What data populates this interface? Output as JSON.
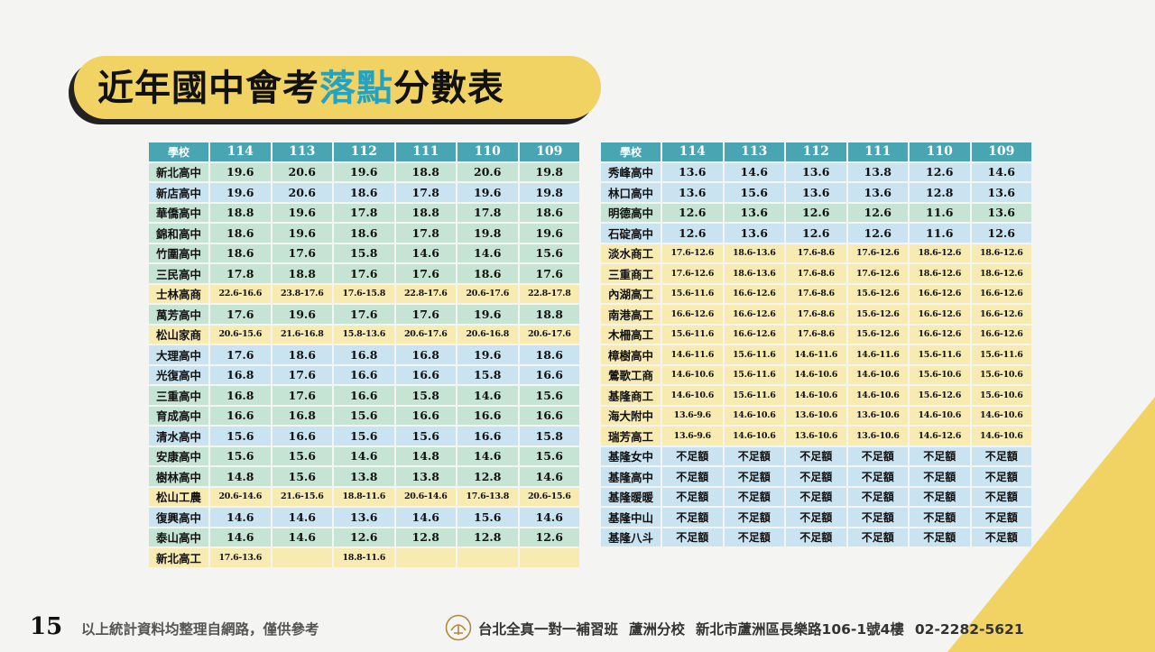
{
  "title": {
    "prefix": "近年國中會考",
    "highlight": "落點",
    "suffix": "分數表"
  },
  "colors": {
    "accent_yellow": "#f1d364",
    "title_highlight": "#26a2c1",
    "header_teal": "#4aa5b3",
    "row_green": "#c6e4d4",
    "row_blue": "#c9e3f1",
    "row_yellow": "#f7ebb2"
  },
  "table_left": {
    "headers": [
      "學校",
      "114",
      "113",
      "112",
      "111",
      "110",
      "109"
    ],
    "rows": [
      {
        "color": "green",
        "cells": [
          "新北高中",
          "19.6",
          "20.6",
          "19.6",
          "18.8",
          "20.6",
          "19.8"
        ]
      },
      {
        "color": "blue",
        "cells": [
          "新店高中",
          "19.6",
          "20.6",
          "18.6",
          "17.8",
          "19.6",
          "19.8"
        ]
      },
      {
        "color": "green",
        "cells": [
          "華僑高中",
          "18.8",
          "19.6",
          "17.8",
          "18.8",
          "17.8",
          "18.6"
        ]
      },
      {
        "color": "green",
        "cells": [
          "錦和高中",
          "18.6",
          "19.6",
          "18.6",
          "17.8",
          "19.8",
          "19.6"
        ]
      },
      {
        "color": "green",
        "cells": [
          "竹圍高中",
          "18.6",
          "17.6",
          "15.8",
          "14.6",
          "14.6",
          "15.6"
        ]
      },
      {
        "color": "green",
        "cells": [
          "三民高中",
          "17.8",
          "18.8",
          "17.6",
          "17.6",
          "18.6",
          "17.6"
        ]
      },
      {
        "color": "yellow",
        "cells": [
          "士林高商",
          "22.6-16.6",
          "23.8-17.6",
          "17.6-15.8",
          "22.8-17.6",
          "20.6-17.6",
          "22.8-17.8"
        ]
      },
      {
        "color": "green",
        "cells": [
          "萬芳高中",
          "17.6",
          "19.6",
          "17.6",
          "17.6",
          "19.6",
          "18.8"
        ]
      },
      {
        "color": "yellow",
        "cells": [
          "松山家商",
          "20.6-15.6",
          "21.6-16.8",
          "15.8-13.6",
          "20.6-17.6",
          "20.6-16.8",
          "20.6-17.6"
        ]
      },
      {
        "color": "blue",
        "cells": [
          "大理高中",
          "17.6",
          "18.6",
          "16.8",
          "16.8",
          "19.6",
          "18.6"
        ]
      },
      {
        "color": "blue",
        "cells": [
          "光復高中",
          "16.8",
          "17.6",
          "16.6",
          "16.6",
          "15.8",
          "16.6"
        ]
      },
      {
        "color": "green",
        "cells": [
          "三重高中",
          "16.8",
          "17.6",
          "16.6",
          "15.8",
          "14.6",
          "15.6"
        ]
      },
      {
        "color": "green",
        "cells": [
          "育成高中",
          "16.6",
          "16.8",
          "15.6",
          "16.6",
          "16.6",
          "16.6"
        ]
      },
      {
        "color": "blue",
        "cells": [
          "清水高中",
          "15.6",
          "16.6",
          "15.6",
          "15.6",
          "16.6",
          "15.8"
        ]
      },
      {
        "color": "green",
        "cells": [
          "安康高中",
          "15.6",
          "15.6",
          "14.6",
          "14.8",
          "14.6",
          "15.6"
        ]
      },
      {
        "color": "green",
        "cells": [
          "樹林高中",
          "14.8",
          "15.6",
          "13.8",
          "13.8",
          "12.8",
          "14.6"
        ]
      },
      {
        "color": "yellow",
        "cells": [
          "松山工農",
          "20.6-14.6",
          "21.6-15.6",
          "18.8-11.6",
          "20.6-14.6",
          "17.6-13.8",
          "20.6-15.6"
        ]
      },
      {
        "color": "blue",
        "cells": [
          "復興高中",
          "14.6",
          "14.6",
          "13.6",
          "14.6",
          "15.6",
          "14.6"
        ]
      },
      {
        "color": "green",
        "cells": [
          "泰山高中",
          "14.6",
          "14.6",
          "12.6",
          "12.8",
          "12.8",
          "12.6"
        ]
      },
      {
        "color": "yellow",
        "cells": [
          "新北高工",
          "17.6-13.6",
          "",
          "18.8-11.6",
          "",
          "",
          ""
        ]
      }
    ]
  },
  "table_right": {
    "headers": [
      "學校",
      "114",
      "113",
      "112",
      "111",
      "110",
      "109"
    ],
    "rows": [
      {
        "color": "blue",
        "cells": [
          "秀峰高中",
          "13.6",
          "14.6",
          "13.6",
          "13.8",
          "12.6",
          "14.6"
        ]
      },
      {
        "color": "blue",
        "cells": [
          "林口高中",
          "13.6",
          "15.6",
          "13.6",
          "13.6",
          "12.8",
          "13.6"
        ]
      },
      {
        "color": "green",
        "cells": [
          "明德高中",
          "12.6",
          "13.6",
          "12.6",
          "12.6",
          "11.6",
          "13.6"
        ]
      },
      {
        "color": "blue",
        "cells": [
          "石碇高中",
          "12.6",
          "13.6",
          "12.6",
          "12.6",
          "11.6",
          "12.6"
        ]
      },
      {
        "color": "yellow",
        "cells": [
          "淡水商工",
          "17.6-12.6",
          "18.6-13.6",
          "17.6-8.6",
          "17.6-12.6",
          "18.6-12.6",
          "18.6-12.6"
        ]
      },
      {
        "color": "yellow",
        "cells": [
          "三重商工",
          "17.6-12.6",
          "18.6-13.6",
          "17.6-8.6",
          "17.6-12.6",
          "18.6-12.6",
          "18.6-12.6"
        ]
      },
      {
        "color": "yellow",
        "cells": [
          "內湖高工",
          "15.6-11.6",
          "16.6-12.6",
          "17.6-8.6",
          "15.6-12.6",
          "16.6-12.6",
          "16.6-12.6"
        ]
      },
      {
        "color": "yellow",
        "cells": [
          "南港高工",
          "16.6-12.6",
          "16.6-12.6",
          "17.6-8.6",
          "15.6-12.6",
          "16.6-12.6",
          "16.6-12.6"
        ]
      },
      {
        "color": "yellow",
        "cells": [
          "木柵高工",
          "15.6-11.6",
          "16.6-12.6",
          "17.6-8.6",
          "15.6-12.6",
          "16.6-12.6",
          "16.6-12.6"
        ]
      },
      {
        "color": "yellow",
        "cells": [
          "樟樹高中",
          "14.6-11.6",
          "15.6-11.6",
          "14.6-11.6",
          "14.6-11.6",
          "15.6-11.6",
          "15.6-11.6"
        ]
      },
      {
        "color": "yellow",
        "cells": [
          "鶯歌工商",
          "14.6-10.6",
          "15.6-11.6",
          "14.6-10.6",
          "14.6-10.6",
          "15.6-10.6",
          "15.6-10.6"
        ]
      },
      {
        "color": "yellow",
        "cells": [
          "基隆商工",
          "14.6-10.6",
          "15.6-11.6",
          "14.6-10.6",
          "14.6-10.6",
          "15.6-12.6",
          "15.6-10.6"
        ]
      },
      {
        "color": "yellow",
        "cells": [
          "海大附中",
          "13.6-9.6",
          "14.6-10.6",
          "13.6-10.6",
          "13.6-10.6",
          "14.6-10.6",
          "14.6-10.6"
        ]
      },
      {
        "color": "yellow",
        "cells": [
          "瑞芳高工",
          "13.6-9.6",
          "14.6-10.6",
          "13.6-10.6",
          "13.6-10.6",
          "14.6-12.6",
          "14.6-10.6"
        ]
      },
      {
        "color": "blue",
        "cells": [
          "基隆女中",
          "不足額",
          "不足額",
          "不足額",
          "不足額",
          "不足額",
          "不足額"
        ]
      },
      {
        "color": "blue",
        "cells": [
          "基隆高中",
          "不足額",
          "不足額",
          "不足額",
          "不足額",
          "不足額",
          "不足額"
        ]
      },
      {
        "color": "blue",
        "cells": [
          "基隆暖暖",
          "不足額",
          "不足額",
          "不足額",
          "不足額",
          "不足額",
          "不足額"
        ]
      },
      {
        "color": "blue",
        "cells": [
          "基隆中山",
          "不足額",
          "不足額",
          "不足額",
          "不足額",
          "不足額",
          "不足額"
        ]
      },
      {
        "color": "blue",
        "cells": [
          "基隆八斗",
          "不足額",
          "不足額",
          "不足額",
          "不足額",
          "不足額",
          "不足額"
        ]
      }
    ]
  },
  "footer": {
    "page_number": "15",
    "note": "以上統計資料均整理自網路，僅供參考",
    "logo_text": "全真",
    "school": "台北全真一對一補習班",
    "branch": "蘆洲分校",
    "address": "新北市蘆洲區長樂路106-1號4樓",
    "phone": "02-2282-5621"
  }
}
